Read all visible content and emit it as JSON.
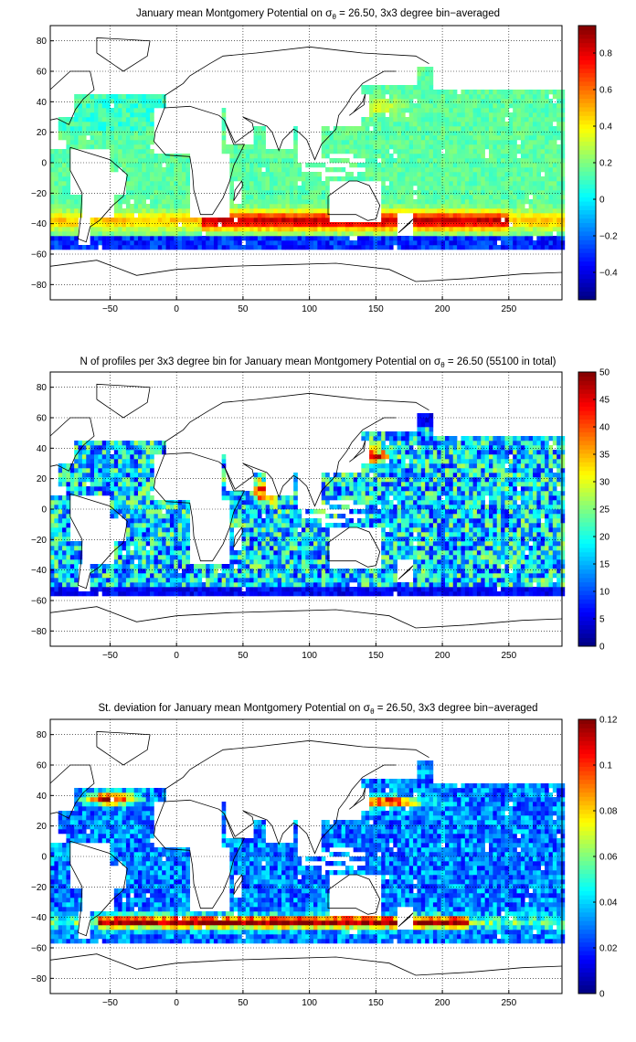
{
  "figure_colormap": "jet",
  "chart_data": [
    {
      "type": "heatmap",
      "title_parts": [
        "January mean Montgomery Potential on ",
        "σ",
        "θ",
        " = 26.50, 3x3 degree bin−averaged"
      ],
      "x": [
        "−50",
        "0",
        "50",
        "100",
        "150",
        "200",
        "250"
      ],
      "y": [
        "80",
        "60",
        "40",
        "20",
        "0",
        "−20",
        "−40",
        "−60",
        "−80"
      ],
      "xlim": [
        -95,
        290
      ],
      "ylim": [
        -90,
        90
      ],
      "grid": true,
      "colorbar": {
        "ticks": [
          "0.8",
          "0.6",
          "0.4",
          "0.2",
          "0",
          "−0.2",
          "−0.4"
        ],
        "ticks_v": [
          0.8,
          0.6,
          0.4,
          0.2,
          0,
          -0.2,
          -0.4
        ],
        "range": [
          -0.55,
          0.95
        ]
      },
      "value_pattern": {
        "base": 0.15,
        "southern_band_peak": 0.85,
        "southern_band_lat": -38,
        "southern_edge_value": -0.3,
        "north_atlantic_value": 0.1,
        "kuroshio_value": 0.35
      }
    },
    {
      "type": "heatmap",
      "title_parts": [
        "N of profiles per 3x3 degree bin for January mean Montgomery Potential on ",
        "σ",
        "θ",
        " = 26.50 (55100 in total)"
      ],
      "x": [
        "−50",
        "0",
        "50",
        "100",
        "150",
        "200",
        "250"
      ],
      "y": [
        "80",
        "60",
        "40",
        "20",
        "0",
        "−20",
        "−40",
        "−60",
        "−80"
      ],
      "xlim": [
        -95,
        290
      ],
      "ylim": [
        -90,
        90
      ],
      "grid": true,
      "colorbar": {
        "ticks": [
          "50",
          "45",
          "40",
          "35",
          "30",
          "25",
          "20",
          "15",
          "10",
          "5",
          "0"
        ],
        "ticks_v": [
          50,
          45,
          40,
          35,
          30,
          25,
          20,
          15,
          10,
          5,
          0
        ],
        "range": [
          0,
          50
        ]
      },
      "value_pattern": {
        "base": 17,
        "kuroshio_value": 48,
        "arabian_sea_value": 40,
        "edge_value": 6
      }
    },
    {
      "type": "heatmap",
      "title_parts": [
        "St. deviation for January mean Montgomery Potential on ",
        "σ",
        "θ",
        " = 26.50, 3x3 degree bin−averaged"
      ],
      "x": [
        "−50",
        "0",
        "50",
        "100",
        "150",
        "200",
        "250"
      ],
      "y": [
        "80",
        "60",
        "40",
        "20",
        "0",
        "−20",
        "−40",
        "−60",
        "−80"
      ],
      "xlim": [
        -95,
        290
      ],
      "ylim": [
        -90,
        90
      ],
      "grid": true,
      "colorbar": {
        "ticks": [
          "0.12",
          "0.1",
          "0.08",
          "0.06",
          "0.04",
          "0.02",
          "0"
        ],
        "ticks_v": [
          0.12,
          0.1,
          0.08,
          0.06,
          0.04,
          0.02,
          0
        ],
        "range": [
          0,
          0.12
        ]
      },
      "value_pattern": {
        "base": 0.03,
        "southern_band_peak": 0.12,
        "southern_band_lat": -43,
        "gulf_stream_value": 0.115,
        "kuroshio_value": 0.11
      }
    }
  ]
}
